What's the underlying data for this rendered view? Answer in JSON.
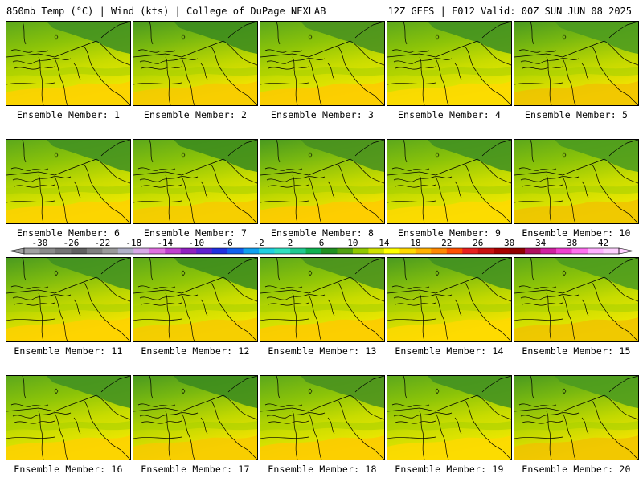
{
  "header": {
    "left": "850mb Temp (°C) | Wind (kts) | College of DuPage NEXLAB",
    "right": "12Z GEFS | F012 Valid: 00Z SUN JUN 08 2025"
  },
  "panels": [
    {
      "label": "Ensemble Member: 1"
    },
    {
      "label": "Ensemble Member: 2"
    },
    {
      "label": "Ensemble Member: 3"
    },
    {
      "label": "Ensemble Member: 4"
    },
    {
      "label": "Ensemble Member: 5"
    },
    {
      "label": "Ensemble Member: 6"
    },
    {
      "label": "Ensemble Member: 7"
    },
    {
      "label": "Ensemble Member: 8"
    },
    {
      "label": "Ensemble Member: 9"
    },
    {
      "label": "Ensemble Member: 10"
    },
    {
      "label": "Ensemble Member: 11"
    },
    {
      "label": "Ensemble Member: 12"
    },
    {
      "label": "Ensemble Member: 13"
    },
    {
      "label": "Ensemble Member: 14"
    },
    {
      "label": "Ensemble Member: 15"
    },
    {
      "label": "Ensemble Member: 16"
    },
    {
      "label": "Ensemble Member: 17"
    },
    {
      "label": "Ensemble Member: 18"
    },
    {
      "label": "Ensemble Member: 19"
    },
    {
      "label": "Ensemble Member: 20"
    }
  ],
  "colorbar": {
    "tick_labels": [
      "-30",
      "-26",
      "-22",
      "-18",
      "-14",
      "-10",
      "-6",
      "-2",
      "2",
      "6",
      "10",
      "14",
      "18",
      "22",
      "26",
      "30",
      "34",
      "38",
      "42"
    ],
    "colors": [
      "#a0a0a0",
      "#8a8a8a",
      "#747474",
      "#606060",
      "#7f7f7f",
      "#9a9a9a",
      "#b0b0c8",
      "#d8a8e8",
      "#e070e0",
      "#c040d0",
      "#9020c0",
      "#6020d0",
      "#2030e0",
      "#1060f0",
      "#10a0f0",
      "#20d0e0",
      "#30e0c0",
      "#20c890",
      "#10b050",
      "#209020",
      "#50a010",
      "#90c800",
      "#d0e000",
      "#ffff00",
      "#ffd800",
      "#ffb000",
      "#ff8800",
      "#ff5000",
      "#e82020",
      "#c81010",
      "#a80000",
      "#900000",
      "#b01060",
      "#d020a0",
      "#f040d0",
      "#ff70f0",
      "#ffb0ff",
      "#ffd0ff"
    ]
  }
}
